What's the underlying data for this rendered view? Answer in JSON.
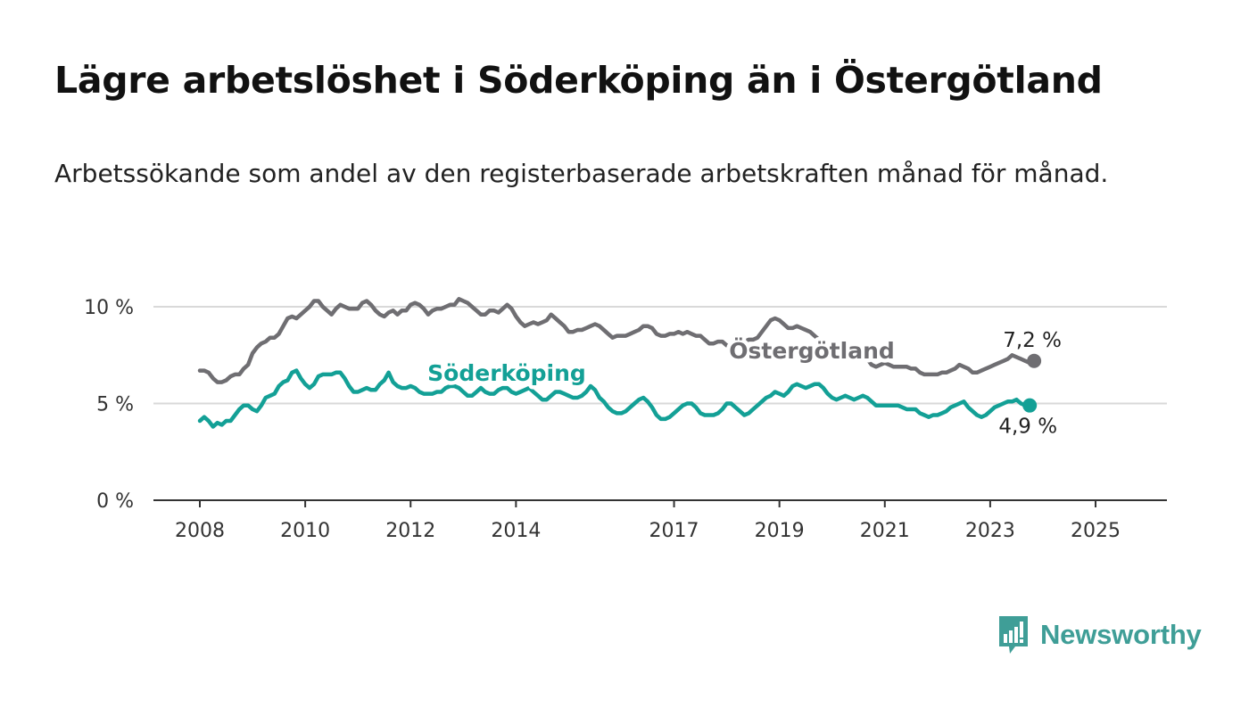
{
  "title": "Lägre arbetslöshet i Söderköping än i Östergötland",
  "subtitle": "Arbetssökande som andel av den registerbaserade arbetskraften månad för månad.",
  "brand": {
    "name": "Newsworthy",
    "logo_icon": "bar-chart-speech-bubble-icon",
    "color": "#3f9e97"
  },
  "chart_data": {
    "type": "line",
    "x_start": "2008-01",
    "x_interval": "month",
    "x_ticks": [
      "2008",
      "2010",
      "2012",
      "2014",
      "2017",
      "2019",
      "2021",
      "2023",
      "2025"
    ],
    "y_ticks": [
      "0 %",
      "5 %",
      "10 %"
    ],
    "ylim": [
      0,
      10
    ],
    "grid": true,
    "series": [
      {
        "name": "Östergötland",
        "color": "#6f6e72",
        "end_label": "7,2 %",
        "values": [
          6.7,
          6.7,
          6.6,
          6.3,
          6.1,
          6.1,
          6.2,
          6.4,
          6.5,
          6.5,
          6.8,
          7.0,
          7.6,
          7.9,
          8.1,
          8.2,
          8.4,
          8.4,
          8.6,
          9.0,
          9.4,
          9.5,
          9.4,
          9.6,
          9.8,
          10.0,
          10.3,
          10.3,
          10.0,
          9.8,
          9.6,
          9.9,
          10.1,
          10.0,
          9.9,
          9.9,
          9.9,
          10.2,
          10.3,
          10.1,
          9.8,
          9.6,
          9.5,
          9.7,
          9.8,
          9.6,
          9.8,
          9.8,
          10.1,
          10.2,
          10.1,
          9.9,
          9.6,
          9.8,
          9.9,
          9.9,
          10.0,
          10.1,
          10.1,
          10.4,
          10.3,
          10.2,
          10.0,
          9.8,
          9.6,
          9.6,
          9.8,
          9.8,
          9.7,
          9.9,
          10.1,
          9.9,
          9.5,
          9.2,
          9.0,
          9.1,
          9.2,
          9.1,
          9.2,
          9.3,
          9.6,
          9.4,
          9.2,
          9.0,
          8.7,
          8.7,
          8.8,
          8.8,
          8.9,
          9.0,
          9.1,
          9.0,
          8.8,
          8.6,
          8.4,
          8.5,
          8.5,
          8.5,
          8.6,
          8.7,
          8.8,
          9.0,
          9.0,
          8.9,
          8.6,
          8.5,
          8.5,
          8.6,
          8.6,
          8.7,
          8.6,
          8.7,
          8.6,
          8.5,
          8.5,
          8.3,
          8.1,
          8.1,
          8.2,
          8.2,
          8.0,
          8.0,
          8.1,
          8.2,
          8.2,
          8.3,
          8.3,
          8.4,
          8.7,
          9.0,
          9.3,
          9.4,
          9.3,
          9.1,
          8.9,
          8.9,
          9.0,
          8.9,
          8.8,
          8.7,
          8.5,
          8.3,
          8.1,
          8.0,
          7.9,
          7.8,
          7.7,
          7.6,
          7.5,
          7.5,
          7.6,
          7.5,
          7.3,
          7.0,
          6.9,
          7.0,
          7.1,
          7.0,
          6.9,
          6.9,
          6.9,
          6.9,
          6.8,
          6.8,
          6.6,
          6.5,
          6.5,
          6.5,
          6.5,
          6.6,
          6.6,
          6.7,
          6.8,
          7.0,
          6.9,
          6.8,
          6.6,
          6.6,
          6.7,
          6.8,
          6.9,
          7.0,
          7.1,
          7.2,
          7.3,
          7.5,
          7.4,
          7.3,
          7.2,
          7.1,
          7.2
        ]
      },
      {
        "name": "Söderköping",
        "color": "#13a096",
        "end_label": "4,9 %",
        "values": [
          4.1,
          4.3,
          4.1,
          3.8,
          4.0,
          3.9,
          4.1,
          4.1,
          4.4,
          4.7,
          4.9,
          4.9,
          4.7,
          4.6,
          4.9,
          5.3,
          5.4,
          5.5,
          5.9,
          6.1,
          6.2,
          6.6,
          6.7,
          6.3,
          6.0,
          5.8,
          6.0,
          6.4,
          6.5,
          6.5,
          6.5,
          6.6,
          6.6,
          6.3,
          5.9,
          5.6,
          5.6,
          5.7,
          5.8,
          5.7,
          5.7,
          6.0,
          6.2,
          6.6,
          6.1,
          5.9,
          5.8,
          5.8,
          5.9,
          5.8,
          5.6,
          5.5,
          5.5,
          5.5,
          5.6,
          5.6,
          5.8,
          5.9,
          5.9,
          5.8,
          5.6,
          5.4,
          5.4,
          5.6,
          5.8,
          5.6,
          5.5,
          5.5,
          5.7,
          5.8,
          5.8,
          5.6,
          5.5,
          5.6,
          5.7,
          5.8,
          5.6,
          5.4,
          5.2,
          5.2,
          5.4,
          5.6,
          5.6,
          5.5,
          5.4,
          5.3,
          5.3,
          5.4,
          5.6,
          5.9,
          5.7,
          5.3,
          5.1,
          4.8,
          4.6,
          4.5,
          4.5,
          4.6,
          4.8,
          5.0,
          5.2,
          5.3,
          5.1,
          4.8,
          4.4,
          4.2,
          4.2,
          4.3,
          4.5,
          4.7,
          4.9,
          5.0,
          5.0,
          4.8,
          4.5,
          4.4,
          4.4,
          4.4,
          4.5,
          4.7,
          5.0,
          5.0,
          4.8,
          4.6,
          4.4,
          4.5,
          4.7,
          4.9,
          5.1,
          5.3,
          5.4,
          5.6,
          5.5,
          5.4,
          5.6,
          5.9,
          6.0,
          5.9,
          5.8,
          5.9,
          6.0,
          6.0,
          5.8,
          5.5,
          5.3,
          5.2,
          5.3,
          5.4,
          5.3,
          5.2,
          5.3,
          5.4,
          5.3,
          5.1,
          4.9,
          4.9,
          4.9,
          4.9,
          4.9,
          4.9,
          4.8,
          4.7,
          4.7,
          4.7,
          4.5,
          4.4,
          4.3,
          4.4,
          4.4,
          4.5,
          4.6,
          4.8,
          4.9,
          5.0,
          5.1,
          4.8,
          4.6,
          4.4,
          4.3,
          4.4,
          4.6,
          4.8,
          4.9,
          5.0,
          5.1,
          5.1,
          5.2,
          5.0,
          4.9,
          4.9
        ]
      }
    ]
  }
}
